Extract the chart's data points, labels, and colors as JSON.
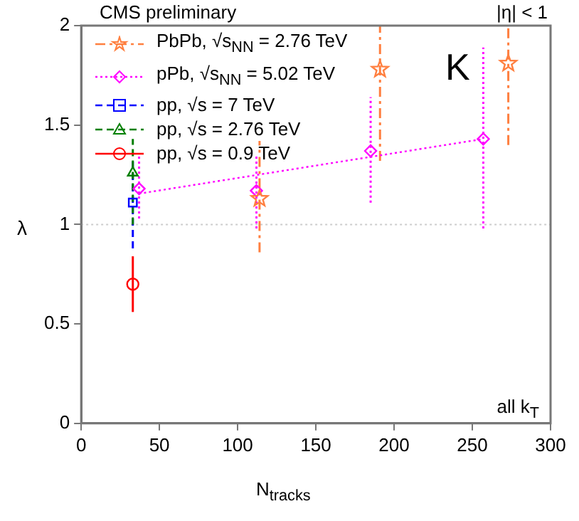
{
  "chart_data": {
    "type": "scatter",
    "xlabel": "N$_{tracks}$",
    "ylabel": "λ",
    "annotations": [
      "CMS preliminary",
      "|η| < 1",
      "K",
      "all k$_{T}$"
    ],
    "xlim": [
      0,
      300
    ],
    "xticks": [
      0,
      50,
      100,
      150,
      200,
      250,
      300
    ],
    "ylim": [
      0,
      2
    ],
    "yticks": [
      0,
      0.5,
      1,
      1.5,
      2
    ],
    "grid": false,
    "legend": "top left",
    "ref_lines": [
      {
        "axis": "y",
        "value": 1,
        "color": "#cccccc",
        "line_style": "dotted"
      }
    ],
    "series": [
      {
        "name": "PbPb, √s$_{NN}$ = 2.76 TeV",
        "color": "#ff7f3f",
        "marker": "star",
        "line_style": "dashdot",
        "x": [
          114,
          191,
          273
        ],
        "values": [
          1.13,
          1.78,
          1.81
        ],
        "errors": [
          [
            0.86,
            1.42
          ],
          [
            1.32,
            2.0
          ],
          [
            1.4,
            2.0
          ]
        ]
      },
      {
        "name": "pPb, √s$_{NN}$ = 5.02 TeV",
        "color": "#ff00ff",
        "marker": "diamond",
        "line_style": "dotted",
        "x": [
          37,
          112,
          185,
          257
        ],
        "values": [
          1.18,
          1.17,
          1.37,
          1.43
        ],
        "errors": [
          [
            1.03,
            1.35
          ],
          [
            0.98,
            1.35
          ],
          [
            1.11,
            1.64
          ],
          [
            0.98,
            1.89
          ]
        ]
      },
      {
        "name": "pp, √s = 7 TeV",
        "color": "#0000ff",
        "marker": "square",
        "line_style": "dashed",
        "x": [
          33
        ],
        "values": [
          1.11
        ],
        "errors": [
          [
            0.88,
            1.32
          ]
        ]
      },
      {
        "name": "pp, √s = 2.76 TeV",
        "color": "#007f00",
        "marker": "triangle",
        "line_style": "dashed",
        "x": [
          33
        ],
        "values": [
          1.26
        ],
        "errors": [
          [
            1.0,
            1.43
          ]
        ]
      },
      {
        "name": "pp, √s = 0.9 TeV",
        "color": "#ff0000",
        "marker": "circle",
        "line_style": "solid",
        "x": [
          33
        ],
        "values": [
          0.7
        ],
        "errors": [
          [
            0.56,
            0.84
          ]
        ]
      },
      {
        "type": "line",
        "color": "#ff00ff",
        "marker": "none",
        "line_style": "dotted",
        "x": [
          37,
          257
        ],
        "values": [
          1.155,
          1.43
        ]
      }
    ]
  }
}
